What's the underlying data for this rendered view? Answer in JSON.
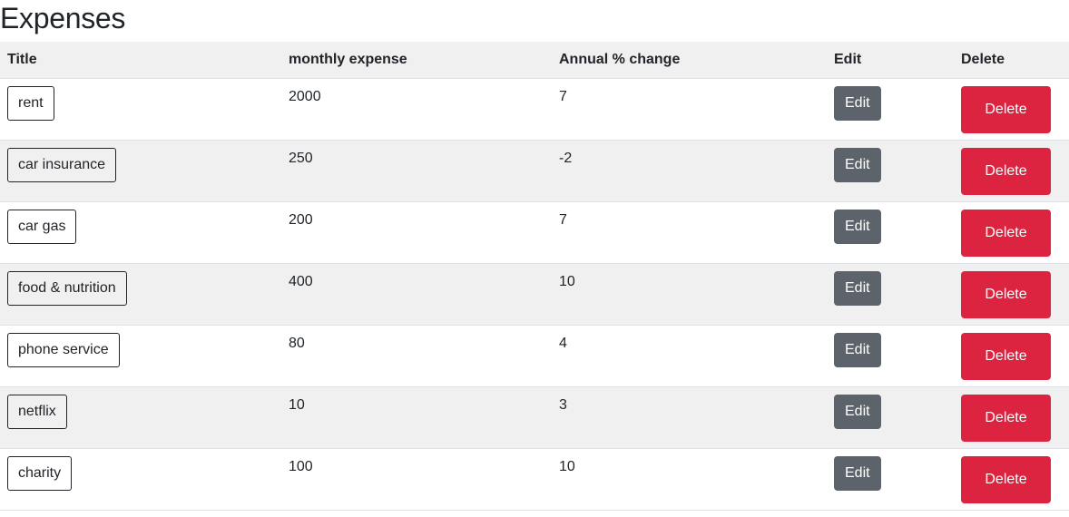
{
  "page": {
    "title": "Expenses"
  },
  "table": {
    "headers": {
      "title": "Title",
      "monthly": "monthly expense",
      "annual": "Annual % change",
      "edit": "Edit",
      "delete": "Delete"
    },
    "edit_label": "Edit",
    "delete_label": "Delete",
    "rows": [
      {
        "title": "rent",
        "monthly": "2000",
        "annual": "7"
      },
      {
        "title": "car insurance",
        "monthly": "250",
        "annual": "-2"
      },
      {
        "title": "car gas",
        "monthly": "200",
        "annual": "7"
      },
      {
        "title": "food & nutrition",
        "monthly": "400",
        "annual": "10"
      },
      {
        "title": "phone service",
        "monthly": "80",
        "annual": "4"
      },
      {
        "title": "netflix",
        "monthly": "10",
        "annual": "3"
      },
      {
        "title": "charity",
        "monthly": "100",
        "annual": "10"
      }
    ]
  },
  "colors": {
    "edit_button": "#5c636a",
    "delete_button": "#dc2340",
    "stripe": "#f0f0f0"
  }
}
